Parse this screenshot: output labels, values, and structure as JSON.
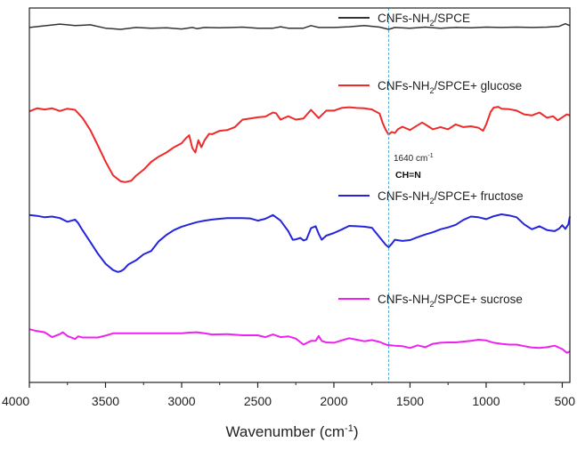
{
  "chart_data": {
    "type": "line",
    "title": "",
    "xlabel": "Wavenumber (cm",
    "xlabel_sup": "-1",
    "xlabel_close": ")",
    "ylabel": "",
    "xlim": [
      4000,
      450
    ],
    "x_reversed": true,
    "grid": false,
    "x_ticks": [
      4000,
      3500,
      3000,
      2500,
      2000,
      1500,
      1000,
      500
    ],
    "x_tick_labels": [
      "4000",
      "3500",
      "3000",
      "2500",
      "2000",
      "1500",
      "1000",
      "500"
    ],
    "ylim": [
      0,
      100
    ],
    "y_ticks_shown": false,
    "series": [
      {
        "name_parts": [
          "CNFs-NH",
          "2",
          "/SPCE"
        ],
        "color": "#333333",
        "x": [
          4000,
          3800,
          3750,
          3700,
          3650,
          3600,
          3500,
          3400,
          3300,
          3200,
          3100,
          3000,
          2930,
          2900,
          2850,
          2750,
          2600,
          2500,
          2400,
          2350,
          2300,
          2200,
          2150,
          2100,
          2000,
          1900,
          1800,
          1700,
          1640,
          1600,
          1500,
          1400,
          1300,
          1200,
          1100,
          1000,
          900,
          800,
          700,
          600,
          520,
          480,
          450
        ],
        "y": [
          94.8,
          95.7,
          95.5,
          95.3,
          95.4,
          95.5,
          94.6,
          94.3,
          94.8,
          94.6,
          94.7,
          94.4,
          94.8,
          94.5,
          94.8,
          94.7,
          94.9,
          94.6,
          94.6,
          95.0,
          94.6,
          94.6,
          95.3,
          94.8,
          94.8,
          95.0,
          95.3,
          94.9,
          94.3,
          94.8,
          94.6,
          94.9,
          94.6,
          94.8,
          94.7,
          94.9,
          94.8,
          94.9,
          94.8,
          94.9,
          95.1,
          95.8,
          95.3
        ]
      },
      {
        "name_parts": [
          "CNFs-NH",
          "2",
          "/SPCE+ glucose"
        ],
        "color": "#ee2a2a",
        "x": [
          4000,
          3950,
          3900,
          3850,
          3800,
          3750,
          3700,
          3650,
          3600,
          3550,
          3500,
          3450,
          3400,
          3370,
          3330,
          3300,
          3250,
          3200,
          3150,
          3100,
          3050,
          3000,
          2970,
          2950,
          2930,
          2910,
          2890,
          2870,
          2850,
          2820,
          2800,
          2750,
          2700,
          2650,
          2600,
          2550,
          2500,
          2450,
          2400,
          2380,
          2350,
          2300,
          2250,
          2200,
          2150,
          2100,
          2050,
          2000,
          1950,
          1900,
          1850,
          1800,
          1750,
          1700,
          1680,
          1660,
          1640,
          1620,
          1600,
          1580,
          1550,
          1500,
          1450,
          1420,
          1400,
          1350,
          1300,
          1250,
          1200,
          1150,
          1100,
          1050,
          1020,
          1000,
          970,
          950,
          920,
          900,
          850,
          800,
          750,
          700,
          650,
          600,
          560,
          530,
          500,
          470,
          450
        ],
        "y": [
          72.4,
          73.2,
          72.9,
          73.2,
          72.5,
          73.1,
          72.8,
          70.6,
          67.4,
          63.3,
          59.0,
          55.3,
          53.7,
          53.5,
          53.9,
          55.2,
          56.8,
          58.9,
          60.3,
          61.4,
          62.8,
          63.9,
          65.3,
          66.0,
          62.6,
          61.4,
          64.7,
          62.8,
          64.6,
          66.4,
          66.3,
          67.2,
          67.4,
          68.2,
          70.2,
          70.5,
          70.8,
          71.0,
          72.1,
          71.9,
          70.2,
          71.1,
          70.2,
          70.5,
          72.8,
          70.6,
          72.6,
          72.6,
          73.3,
          73.5,
          73.3,
          73.2,
          72.9,
          71.8,
          69.3,
          67.5,
          66.2,
          66.9,
          66.6,
          67.6,
          68.3,
          67.4,
          68.7,
          69.4,
          68.9,
          67.6,
          68.2,
          67.6,
          68.9,
          68.2,
          68.4,
          68.0,
          67.2,
          68.9,
          72.3,
          73.4,
          73.6,
          73.1,
          73.0,
          72.6,
          71.6,
          71.3,
          72.1,
          70.7,
          71.1,
          70.0,
          70.8,
          71.6,
          71.3
        ]
      },
      {
        "name_parts": [
          "CNFs-NH",
          "2",
          "/SPCE+ fructose"
        ],
        "color": "#2424dd",
        "x": [
          4000,
          3950,
          3900,
          3850,
          3800,
          3750,
          3700,
          3680,
          3650,
          3600,
          3550,
          3500,
          3450,
          3420,
          3400,
          3380,
          3350,
          3300,
          3250,
          3200,
          3150,
          3100,
          3050,
          3000,
          2950,
          2900,
          2850,
          2800,
          2750,
          2700,
          2650,
          2600,
          2550,
          2500,
          2450,
          2400,
          2350,
          2330,
          2300,
          2270,
          2250,
          2220,
          2200,
          2180,
          2150,
          2120,
          2100,
          2080,
          2050,
          2000,
          1950,
          1900,
          1850,
          1800,
          1750,
          1700,
          1660,
          1640,
          1620,
          1600,
          1550,
          1500,
          1450,
          1400,
          1350,
          1300,
          1250,
          1200,
          1150,
          1100,
          1050,
          1000,
          950,
          900,
          850,
          800,
          750,
          700,
          650,
          600,
          550,
          520,
          500,
          480,
          460,
          450
        ],
        "y": [
          44.7,
          44.5,
          44.1,
          44.3,
          43.9,
          42.9,
          43.5,
          42.6,
          40.6,
          37.5,
          34.4,
          31.7,
          30.0,
          29.5,
          29.7,
          30.2,
          31.5,
          32.6,
          34.2,
          35.1,
          37.7,
          39.4,
          40.7,
          41.6,
          42.2,
          42.8,
          43.2,
          43.5,
          43.7,
          43.9,
          43.9,
          43.9,
          43.8,
          43.2,
          43.7,
          44.7,
          43.2,
          42.1,
          40.4,
          38.1,
          38.2,
          38.6,
          37.9,
          38.2,
          41.2,
          41.7,
          39.7,
          38.1,
          39.2,
          39.9,
          40.8,
          41.8,
          41.7,
          41.6,
          41.3,
          38.8,
          36.8,
          36.1,
          37.0,
          38.1,
          37.8,
          38.0,
          38.8,
          39.5,
          40.1,
          40.9,
          41.4,
          42.1,
          43.4,
          44.3,
          44.1,
          43.6,
          44.4,
          44.9,
          44.6,
          44.1,
          42.2,
          40.9,
          41.7,
          40.7,
          40.4,
          41.1,
          42.0,
          41.0,
          42.2,
          44.3
        ]
      },
      {
        "name_parts": [
          "CNFs-NH",
          "2",
          "/SPCE+ sucrose"
        ],
        "color": "#ee22ee",
        "x": [
          4000,
          3950,
          3900,
          3850,
          3800,
          3780,
          3750,
          3700,
          3680,
          3650,
          3600,
          3550,
          3500,
          3450,
          3400,
          3300,
          3200,
          3100,
          3000,
          2950,
          2900,
          2850,
          2800,
          2700,
          2600,
          2500,
          2450,
          2400,
          2350,
          2300,
          2250,
          2200,
          2150,
          2120,
          2100,
          2080,
          2050,
          2000,
          1950,
          1900,
          1850,
          1800,
          1750,
          1700,
          1650,
          1600,
          1550,
          1500,
          1450,
          1400,
          1350,
          1300,
          1250,
          1200,
          1150,
          1100,
          1050,
          1000,
          950,
          900,
          850,
          800,
          750,
          700,
          650,
          600,
          550,
          500,
          470,
          450
        ],
        "y": [
          14.2,
          13.7,
          13.4,
          12.1,
          12.9,
          13.4,
          12.4,
          11.6,
          12.3,
          12.0,
          12.0,
          12.0,
          12.5,
          13.1,
          13.1,
          13.1,
          13.1,
          13.1,
          13.1,
          13.3,
          13.4,
          13.1,
          12.8,
          12.9,
          12.6,
          12.6,
          12.1,
          12.8,
          12.1,
          12.3,
          11.7,
          10.1,
          11.1,
          11.1,
          12.4,
          11.1,
          10.7,
          10.6,
          11.2,
          11.8,
          11.4,
          11.0,
          11.3,
          10.8,
          10.0,
          9.8,
          9.7,
          9.2,
          9.9,
          9.4,
          10.3,
          10.6,
          10.7,
          10.7,
          10.9,
          11.1,
          11.4,
          11.2,
          10.6,
          10.3,
          10.1,
          10.1,
          9.7,
          9.3,
          9.2,
          9.4,
          9.8,
          8.9,
          7.9,
          8.3
        ]
      }
    ],
    "reference_line": {
      "x": 1640,
      "style": "dashed",
      "color": "#55aadd"
    },
    "annotations": {
      "wavenumber_value": "1640 cm",
      "wavenumber_sup": "-1",
      "bond": "CH=N"
    },
    "legend_placement": "inline-right-of-each-trace"
  }
}
